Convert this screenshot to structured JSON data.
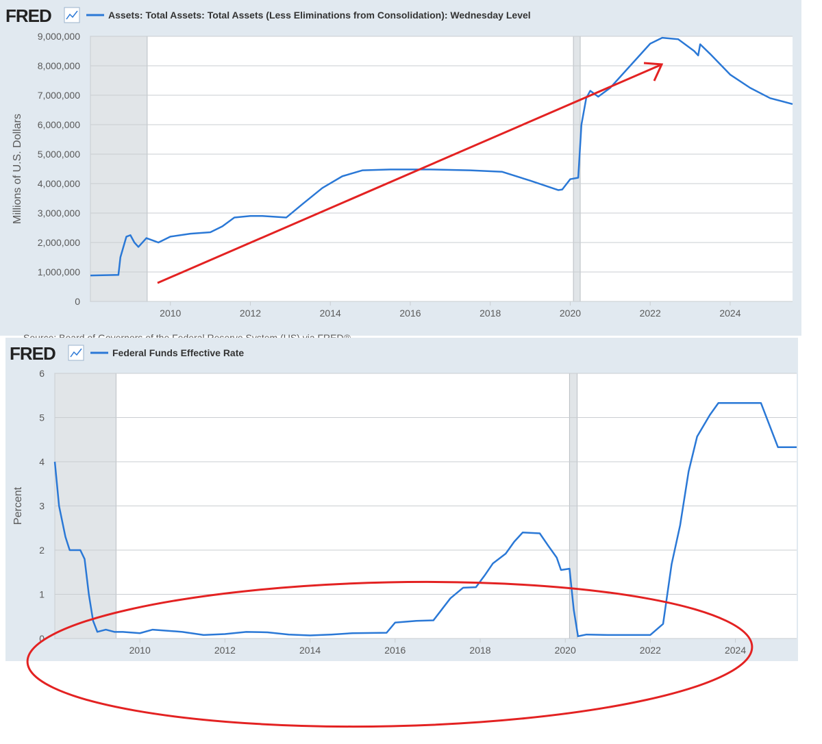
{
  "chart_data": [
    {
      "type": "line",
      "brand": "FRED",
      "y_label": "Millions of U.S. Dollars",
      "source": "Source: Board of Governors of the Federal Reserve System (US) via FRED®",
      "x": [
        2008.0,
        2008.7,
        2008.75,
        2008.9,
        2009.0,
        2009.1,
        2009.2,
        2009.4,
        2009.6,
        2009.7,
        2010.0,
        2010.5,
        2011.0,
        2011.3,
        2011.6,
        2012.0,
        2012.3,
        2012.9,
        2013.3,
        2013.8,
        2014.3,
        2014.8,
        2015.5,
        2016.5,
        2017.5,
        2018.3,
        2019.0,
        2019.7,
        2019.8,
        2020.0,
        2020.2,
        2020.28,
        2020.4,
        2020.5,
        2020.7,
        2021.0,
        2021.5,
        2022.0,
        2022.3,
        2022.7,
        2023.1,
        2023.2,
        2023.25,
        2023.5,
        2024.0,
        2024.5,
        2025.0,
        2025.56
      ],
      "series": [
        {
          "name": "Assets: Total Assets: Total Assets (Less Eliminations from Consolidation): Wednesday Level",
          "color": "#2a78d6",
          "values": [
            880000,
            900000,
            1500000,
            2200000,
            2250000,
            2000000,
            1850000,
            2150000,
            2050000,
            2000000,
            2200000,
            2300000,
            2350000,
            2550000,
            2850000,
            2900000,
            2900000,
            2850000,
            3300000,
            3850000,
            4250000,
            4450000,
            4480000,
            4480000,
            4450000,
            4400000,
            4100000,
            3780000,
            3800000,
            4150000,
            4200000,
            6000000,
            6900000,
            7150000,
            6950000,
            7250000,
            8000000,
            8750000,
            8950000,
            8900000,
            8500000,
            8350000,
            8730000,
            8400000,
            7700000,
            7250000,
            6900000,
            6700000
          ]
        }
      ],
      "xlim": [
        2008.0,
        2025.56
      ],
      "xticks": [
        2010,
        2012,
        2014,
        2016,
        2018,
        2020,
        2022,
        2024
      ],
      "ylim": [
        0,
        9000000
      ],
      "yticks": [
        0,
        {
          "value": 1000000,
          "label": "1,000,000"
        },
        {
          "value": 2000000,
          "label": "2,000,000"
        },
        {
          "value": 3000000,
          "label": "3,000,000"
        },
        {
          "value": 4000000,
          "label": "4,000,000"
        },
        {
          "value": 5000000,
          "label": "5,000,000"
        },
        {
          "value": 6000000,
          "label": "6,000,000"
        },
        {
          "value": 7000000,
          "label": "7,000,000"
        },
        {
          "value": 8000000,
          "label": "8,000,000"
        },
        {
          "value": 9000000,
          "label": "9,000,000"
        }
      ],
      "recessions": [
        [
          2008.0,
          2009.42
        ],
        [
          2020.08,
          2020.25
        ]
      ],
      "grid": true
    },
    {
      "type": "line",
      "brand": "FRED",
      "y_label": "Percent",
      "x": [
        2008.0,
        2008.1,
        2008.25,
        2008.35,
        2008.6,
        2008.7,
        2008.8,
        2008.9,
        2009.0,
        2009.2,
        2009.4,
        2009.6,
        2010.0,
        2010.3,
        2011.0,
        2011.5,
        2012.0,
        2012.5,
        2013.0,
        2013.5,
        2014.0,
        2014.5,
        2015.0,
        2015.8,
        2016.0,
        2016.5,
        2016.9,
        2017.1,
        2017.3,
        2017.6,
        2017.9,
        2018.1,
        2018.3,
        2018.6,
        2018.8,
        2019.0,
        2019.4,
        2019.6,
        2019.8,
        2019.9,
        2020.1,
        2020.2,
        2020.3,
        2020.5,
        2021.0,
        2021.5,
        2022.0,
        2022.3,
        2022.5,
        2022.7,
        2022.9,
        2023.1,
        2023.4,
        2023.6,
        2024.6,
        2024.8,
        2025.0,
        2025.44
      ],
      "series": [
        {
          "name": "Federal Funds Effective Rate",
          "color": "#2a78d6",
          "values": [
            4.0,
            3.0,
            2.3,
            2.0,
            2.0,
            1.8,
            1.0,
            0.4,
            0.15,
            0.2,
            0.15,
            0.15,
            0.12,
            0.2,
            0.15,
            0.08,
            0.1,
            0.15,
            0.14,
            0.09,
            0.07,
            0.09,
            0.12,
            0.13,
            0.36,
            0.4,
            0.41,
            0.66,
            0.91,
            1.15,
            1.16,
            1.42,
            1.7,
            1.92,
            2.19,
            2.4,
            2.38,
            2.1,
            1.83,
            1.55,
            1.58,
            0.65,
            0.05,
            0.09,
            0.08,
            0.08,
            0.08,
            0.33,
            1.68,
            2.56,
            3.78,
            4.57,
            5.06,
            5.33,
            5.33,
            4.83,
            4.33,
            4.33
          ]
        }
      ],
      "xlim": [
        2008.0,
        2025.44
      ],
      "xticks": [
        2010,
        2012,
        2014,
        2016,
        2018,
        2020,
        2022,
        2024
      ],
      "ylim": [
        0,
        6
      ],
      "yticks": [
        0,
        1,
        2,
        3,
        4,
        5,
        6
      ],
      "recessions": [
        [
          2008.0,
          2009.44
        ],
        [
          2020.1,
          2020.28
        ]
      ],
      "grid": true
    }
  ]
}
